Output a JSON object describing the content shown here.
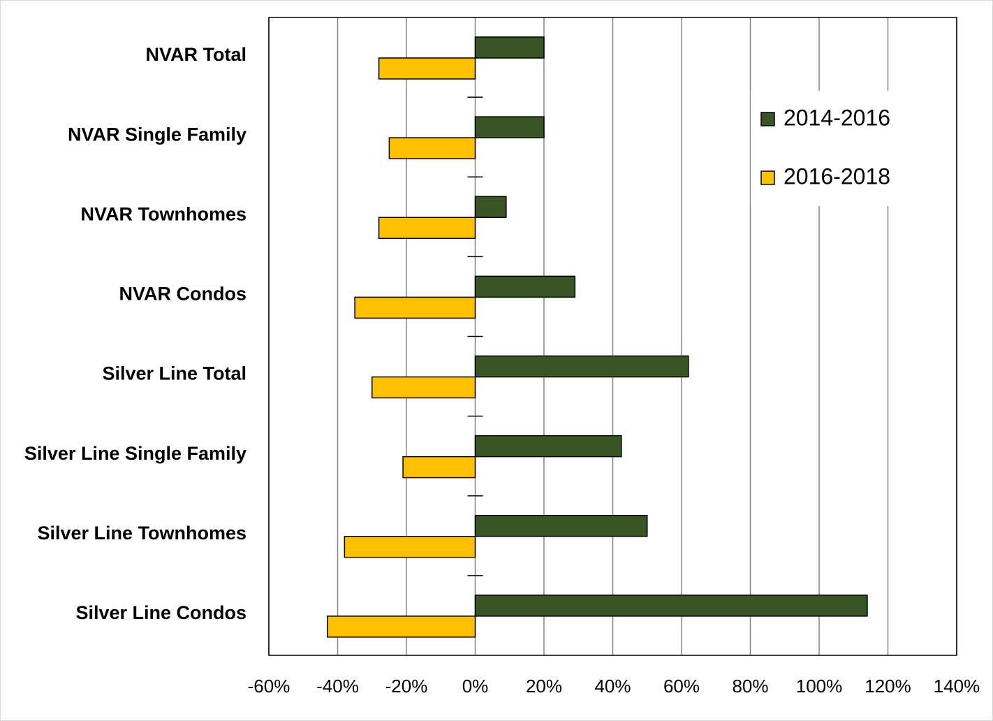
{
  "chart_data": {
    "type": "barh",
    "categories": [
      "NVAR Total",
      "NVAR Single Family",
      "NVAR Townhomes",
      "NVAR Condos",
      "Silver Line Total",
      "Silver Line Single Family",
      "Silver Line Townhomes",
      "Silver Line Condos"
    ],
    "series": [
      {
        "name": "2014-2016",
        "color": "#375623",
        "values": [
          20,
          20,
          9,
          29,
          62,
          42.5,
          50,
          114
        ]
      },
      {
        "name": "2016-2018",
        "color": "#ffc000",
        "values": [
          -28,
          -25,
          -28,
          -35,
          -30,
          -21,
          -38,
          -43
        ]
      }
    ],
    "xlim": [
      -60,
      140
    ],
    "xticks": [
      {
        "value": -60,
        "label": "-60%"
      },
      {
        "value": -40,
        "label": "-40%"
      },
      {
        "value": -20,
        "label": "-20%"
      },
      {
        "value": 0,
        "label": "0%"
      },
      {
        "value": 20,
        "label": "20%"
      },
      {
        "value": 40,
        "label": "40%"
      },
      {
        "value": 60,
        "label": "60%"
      },
      {
        "value": 80,
        "label": "80%"
      },
      {
        "value": 100,
        "label": "100%"
      },
      {
        "value": 120,
        "label": "120%"
      },
      {
        "value": 140,
        "label": "140%"
      }
    ],
    "grid": true,
    "legend": "upper right"
  }
}
